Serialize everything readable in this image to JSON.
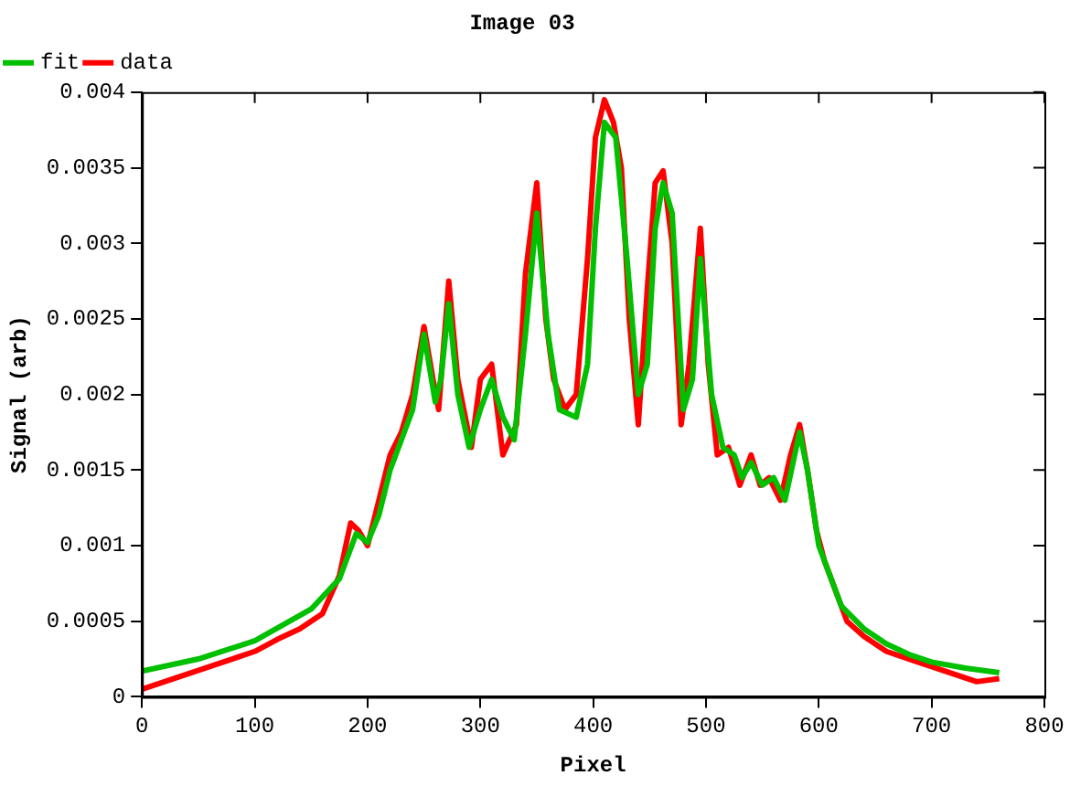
{
  "chart_data": {
    "type": "line",
    "title": "Image 03",
    "xlabel": "Pixel",
    "ylabel": "Signal (arb)",
    "xlim": [
      0,
      800
    ],
    "xticks": [
      0,
      100,
      200,
      300,
      400,
      500,
      600,
      700,
      800
    ],
    "ylim": [
      0,
      0.004
    ],
    "yticks": [
      0,
      0.0005,
      0.001,
      0.0015,
      0.002,
      0.0025,
      0.003,
      0.0035,
      0.004
    ],
    "grid": false,
    "legend": "top left",
    "marker": "none",
    "line_style": "solid",
    "series": [
      {
        "name": "data",
        "color": "#ff0000",
        "x": [
          0,
          20,
          40,
          60,
          80,
          100,
          120,
          140,
          160,
          175,
          185,
          192,
          200,
          210,
          220,
          230,
          240,
          250,
          258,
          263,
          272,
          280,
          292,
          300,
          310,
          320,
          332,
          340,
          350,
          358,
          365,
          375,
          385,
          395,
          402,
          410,
          418,
          425,
          432,
          440,
          448,
          455,
          462,
          470,
          478,
          485,
          495,
          502,
          510,
          520,
          530,
          540,
          548,
          556,
          566,
          575,
          583,
          590,
          598,
          605,
          615,
          625,
          640,
          660,
          680,
          700,
          720,
          740,
          760
        ],
        "values": [
          5e-05,
          0.0001,
          0.00015,
          0.0002,
          0.00025,
          0.0003,
          0.00038,
          0.00045,
          0.00055,
          0.0008,
          0.00115,
          0.0011,
          0.001,
          0.0013,
          0.0016,
          0.00175,
          0.002,
          0.00245,
          0.0021,
          0.0019,
          0.00275,
          0.0021,
          0.00165,
          0.0021,
          0.0022,
          0.0016,
          0.0018,
          0.0028,
          0.0034,
          0.0025,
          0.0021,
          0.0019,
          0.002,
          0.0029,
          0.0037,
          0.00395,
          0.0038,
          0.0035,
          0.0025,
          0.0018,
          0.0027,
          0.0034,
          0.00348,
          0.003,
          0.0018,
          0.0022,
          0.0031,
          0.0022,
          0.0016,
          0.00165,
          0.0014,
          0.0016,
          0.0014,
          0.00145,
          0.0013,
          0.0016,
          0.0018,
          0.0015,
          0.0011,
          0.0009,
          0.0007,
          0.0005,
          0.0004,
          0.0003,
          0.00025,
          0.0002,
          0.00015,
          0.0001,
          0.00012
        ]
      },
      {
        "name": "fit",
        "color": "#00c000",
        "x": [
          0,
          50,
          100,
          150,
          175,
          190,
          200,
          210,
          220,
          230,
          240,
          250,
          260,
          265,
          272,
          280,
          290,
          300,
          310,
          320,
          330,
          340,
          350,
          360,
          370,
          385,
          395,
          402,
          410,
          420,
          430,
          440,
          448,
          455,
          462,
          470,
          480,
          488,
          495,
          505,
          515,
          525,
          532,
          540,
          550,
          560,
          570,
          583,
          590,
          600,
          610,
          620,
          640,
          660,
          680,
          700,
          730,
          760
        ],
        "values": [
          0.00017,
          0.00025,
          0.00037,
          0.00058,
          0.00078,
          0.00108,
          0.00102,
          0.0012,
          0.0015,
          0.0017,
          0.0019,
          0.0024,
          0.00195,
          0.0021,
          0.0026,
          0.002,
          0.00165,
          0.0019,
          0.0021,
          0.00185,
          0.0017,
          0.0024,
          0.0032,
          0.0024,
          0.0019,
          0.00185,
          0.0022,
          0.0031,
          0.0038,
          0.0037,
          0.0029,
          0.002,
          0.0022,
          0.0031,
          0.0034,
          0.0032,
          0.0019,
          0.0021,
          0.0029,
          0.002,
          0.00165,
          0.0016,
          0.00145,
          0.00155,
          0.0014,
          0.00145,
          0.0013,
          0.00175,
          0.0015,
          0.001,
          0.0008,
          0.0006,
          0.00045,
          0.00035,
          0.00028,
          0.00023,
          0.00019,
          0.00016
        ]
      }
    ]
  }
}
